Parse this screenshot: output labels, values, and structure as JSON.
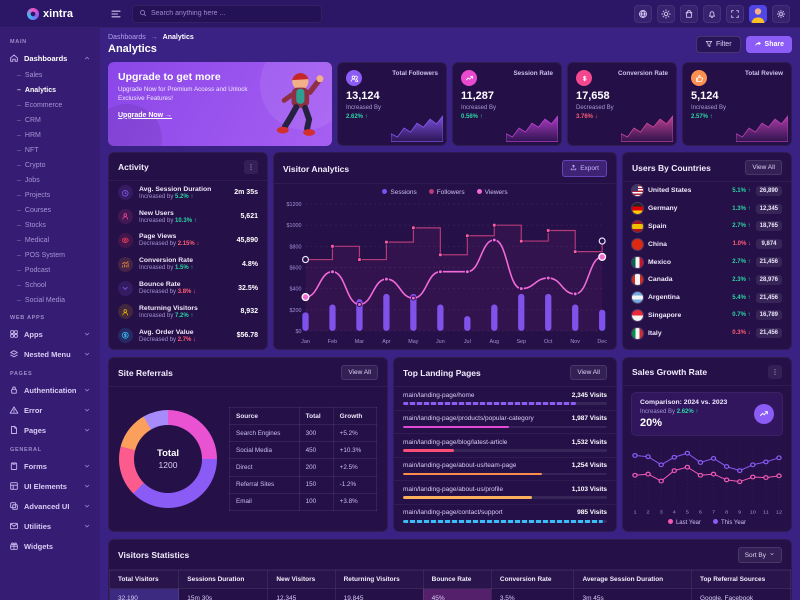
{
  "brand": {
    "name": "xintra"
  },
  "topbar": {
    "search_placeholder": "Search anything here ...",
    "cart_badge": "5"
  },
  "header": {
    "breadcrumb_parent": "Dashboards",
    "breadcrumb_sep": "→",
    "breadcrumb_current": "Analytics",
    "title": "Analytics",
    "filter_label": "Filter",
    "share_label": "Share"
  },
  "sidebar": {
    "sections": [
      {
        "label": "MAIN",
        "items": [
          {
            "label": "Dashboards",
            "icon": "home",
            "expanded": true,
            "active": true,
            "children": [
              "Sales",
              "Analytics",
              "Ecommerce",
              "CRM",
              "HRM",
              "NFT",
              "Crypto",
              "Jobs",
              "Projects",
              "Courses",
              "Stocks",
              "Medical",
              "POS System",
              "Podcast",
              "School",
              "Social Media"
            ],
            "active_child": "Analytics"
          }
        ]
      },
      {
        "label": "WEB APPS",
        "items": [
          {
            "label": "Apps",
            "icon": "grid"
          },
          {
            "label": "Nested Menu",
            "icon": "stack"
          }
        ]
      },
      {
        "label": "PAGES",
        "items": [
          {
            "label": "Authentication",
            "icon": "lock"
          },
          {
            "label": "Error",
            "icon": "warning"
          },
          {
            "label": "Pages",
            "icon": "file"
          }
        ]
      },
      {
        "label": "GENERAL",
        "items": [
          {
            "label": "Forms",
            "icon": "clipboard"
          },
          {
            "label": "UI Elements",
            "icon": "ui"
          },
          {
            "label": "Advanced UI",
            "icon": "adv"
          },
          {
            "label": "Utilities",
            "icon": "mail"
          },
          {
            "label": "Widgets",
            "icon": "gift",
            "chevron": false
          }
        ]
      }
    ]
  },
  "promo": {
    "title": "Upgrade to get more",
    "body": "Upgrade Now for Premium Access and Unlock Exclusive Features!",
    "cta": "Upgrade Now →"
  },
  "stat_cards": [
    {
      "label": "Total Followers",
      "value": "13,124",
      "direction_label": "Increased By",
      "delta": "2.62%",
      "trend": "up",
      "icon": "users2",
      "icon_color": "#8b5cf6",
      "spark_color": "#8b5cf6"
    },
    {
      "label": "Session Rate",
      "value": "11,287",
      "direction_label": "Increased By",
      "delta": "0.56%",
      "trend": "up",
      "icon": "trend",
      "icon_color": "#e94ad0",
      "spark_color": "#c445d8"
    },
    {
      "label": "Conversion Rate",
      "value": "17,658",
      "direction_label": "Decreased By",
      "delta": "3.76%",
      "trend": "down",
      "icon": "dollar2",
      "icon_color": "#f5478f",
      "spark_color": "#d94a9e"
    },
    {
      "label": "Total Review",
      "value": "5,124",
      "direction_label": "Increased By",
      "delta": "2.57%",
      "trend": "up",
      "icon": "thumb",
      "icon_color": "#fb9052",
      "spark_color": "#c445b8"
    }
  ],
  "activity": {
    "title": "Activity",
    "items": [
      {
        "label": "Avg. Session Duration",
        "direction": "Increased by",
        "delta": "5.2%",
        "trend": "up",
        "value": "2m 35s",
        "icon": "clock",
        "color": "#8b5cf6"
      },
      {
        "label": "New Users",
        "direction": "Increased by",
        "delta": "10.3%",
        "trend": "up",
        "value": "5,621",
        "icon": "user",
        "color": "#ec4899"
      },
      {
        "label": "Page Views",
        "direction": "Decreased by",
        "delta": "2.15%",
        "trend": "down",
        "value": "45,890",
        "icon": "eye",
        "color": "#f43f5e"
      },
      {
        "label": "Conversion Rate",
        "direction": "Increased by",
        "delta": "1.5%",
        "trend": "up",
        "value": "4.8%",
        "icon": "chart",
        "color": "#fb923c"
      },
      {
        "label": "Bounce Rate",
        "direction": "Decreased by",
        "delta": "3.8%",
        "trend": "down",
        "value": "32.5%",
        "icon": "chevdown",
        "color": "#8b5cf6"
      },
      {
        "label": "Returning Visitors",
        "direction": "Increased by",
        "delta": "7.2%",
        "trend": "up",
        "value": "8,932",
        "icon": "user",
        "color": "#eab308"
      },
      {
        "label": "Avg. Order Value",
        "direction": "Decreased by",
        "delta": "2.7%",
        "trend": "down",
        "value": "$56.78",
        "icon": "dollar",
        "color": "#38bdf8"
      }
    ]
  },
  "visitor_analytics": {
    "title": "Visitor Analytics",
    "export_label": "Export",
    "chart": {
      "type": "mixed",
      "categories": [
        "Jan",
        "Feb",
        "Mar",
        "Apr",
        "May",
        "Jun",
        "Jul",
        "Aug",
        "Sep",
        "Oct",
        "Nov",
        "Dec"
      ],
      "ymax": 1200,
      "ystep": 200,
      "y_prefix": "$",
      "series": [
        {
          "name": "Sessions",
          "type": "bar",
          "color": "#7a52f0",
          "values": [
            175,
            250,
            300,
            350,
            350,
            250,
            140,
            250,
            350,
            350,
            250,
            200
          ]
        },
        {
          "name": "Followers",
          "type": "stepline",
          "color": "#b43a78",
          "marker_color": "#ff5f9e",
          "values": [
            675,
            800,
            675,
            840,
            975,
            720,
            900,
            1000,
            850,
            950,
            750,
            850
          ]
        },
        {
          "name": "Viewers",
          "type": "line",
          "color": "#f26ad8",
          "values": [
            320,
            560,
            250,
            490,
            310,
            560,
            560,
            860,
            400,
            500,
            350,
            700
          ]
        }
      ]
    }
  },
  "countries": {
    "title": "Users By Countries",
    "view_all": "View All",
    "items": [
      {
        "name": "United States",
        "flag": "us",
        "delta": "5.1%",
        "trend": "up",
        "value": "26,890"
      },
      {
        "name": "Germany",
        "flag": "de",
        "delta": "1.3%",
        "trend": "up",
        "value": "12,345"
      },
      {
        "name": "Spain",
        "flag": "es",
        "delta": "2.7%",
        "trend": "up",
        "value": "18,765"
      },
      {
        "name": "China",
        "flag": "cn",
        "delta": "1.0%",
        "trend": "down",
        "value": "9,874"
      },
      {
        "name": "Mexico",
        "flag": "mx",
        "delta": "2.7%",
        "trend": "up",
        "value": "21,456"
      },
      {
        "name": "Canada",
        "flag": "ca",
        "delta": "2.3%",
        "trend": "up",
        "value": "28,976"
      },
      {
        "name": "Argentina",
        "flag": "ar",
        "delta": "5.4%",
        "trend": "up",
        "value": "21,456"
      },
      {
        "name": "Singapore",
        "flag": "sg",
        "delta": "0.7%",
        "trend": "up",
        "value": "16,789"
      },
      {
        "name": "Italy",
        "flag": "it",
        "delta": "0.3%",
        "trend": "down",
        "value": "21,456"
      }
    ]
  },
  "site_referrals": {
    "title": "Site Referrals",
    "view_all": "View All",
    "total_label": "Total",
    "total_value": "1200",
    "columns": [
      "Source",
      "Total",
      "Growth"
    ],
    "chart_type": "donut",
    "rows": [
      {
        "source": "Search Engines",
        "total": "300",
        "growth": "+5.2%",
        "value": 300,
        "color": "#e953d2"
      },
      {
        "source": "Social Media",
        "total": "450",
        "growth": "+10.3%",
        "value": 450,
        "color": "#8a5cf5"
      },
      {
        "source": "Direct",
        "total": "200",
        "growth": "+2.5%",
        "value": 200,
        "color": "#fb5c8d"
      },
      {
        "source": "Referral Sites",
        "total": "150",
        "growth": "-1.2%",
        "value": 150,
        "color": "#fba05c"
      },
      {
        "source": "Email",
        "total": "100",
        "growth": "+3.8%",
        "value": 100,
        "color": "#a78bfa"
      }
    ]
  },
  "landing_pages": {
    "title": "Top Landing Pages",
    "view_all": "View All",
    "items": [
      {
        "path": "main/landing-page/home",
        "visits": "2,345 Visits",
        "color": "#8b5cf6",
        "pct": 85,
        "dashed": true
      },
      {
        "path": "main/landing-page/products/popular-category",
        "visits": "1,987 Visits",
        "color": "#e14ad2",
        "pct": 52,
        "dashed": false
      },
      {
        "path": "main/landing-page/blog/latest-article",
        "visits": "1,532 Visits",
        "color": "#fb4f77",
        "pct": 25,
        "dashed": false
      },
      {
        "path": "main/landing-page/about-us/team-page",
        "visits": "1,254 Visits",
        "color": "#fb8c4c",
        "pct": 68,
        "dashed": false
      },
      {
        "path": "main/landing-page/about-us/profile",
        "visits": "1,103 Visits",
        "color": "#fbb05c",
        "pct": 63,
        "dashed": false
      },
      {
        "path": "main/landing-page/contact/support",
        "visits": "985 Visits",
        "color": "#38bdf8",
        "pct": 98,
        "dashed": true
      }
    ]
  },
  "sales_growth": {
    "title": "Sales Growth Rate",
    "comparison": "Comparison: 2024 vs. 2023",
    "direction_label": "Increased By",
    "delta": "2.62%",
    "trend": "up",
    "rate": "20%",
    "chart": {
      "type": "line",
      "x": [
        "1",
        "2",
        "3",
        "4",
        "5",
        "6",
        "7",
        "8",
        "9",
        "10",
        "11",
        "12"
      ],
      "series": [
        {
          "name": "Last Year",
          "color": "#f25ab4",
          "values": [
            48,
            50,
            38,
            56,
            62,
            48,
            50,
            40,
            37,
            45,
            44,
            47
          ]
        },
        {
          "name": "This Year",
          "color": "#8b5cf6",
          "values": [
            82,
            80,
            66,
            79,
            86,
            70,
            77,
            63,
            56,
            66,
            71,
            78
          ]
        }
      ]
    }
  },
  "visitors_stats": {
    "title": "Visitors Statistics",
    "sort_label": "Sort By",
    "columns": [
      "Total Visitors",
      "Sessions Duration",
      "New Visitors",
      "Returning Visitors",
      "Bounce Rate",
      "Conversion Rate",
      "Average Session Duration",
      "Top Referral Sources"
    ],
    "row": [
      {
        "v": "32,190",
        "hl": "indigo"
      },
      {
        "v": "15m 30s"
      },
      {
        "v": "12,345"
      },
      {
        "v": "19,845"
      },
      {
        "v": "45%",
        "hl": "purple"
      },
      {
        "v": "3.5%"
      },
      {
        "v": "3m 45s"
      },
      {
        "v": "Google, Facebook"
      }
    ]
  }
}
